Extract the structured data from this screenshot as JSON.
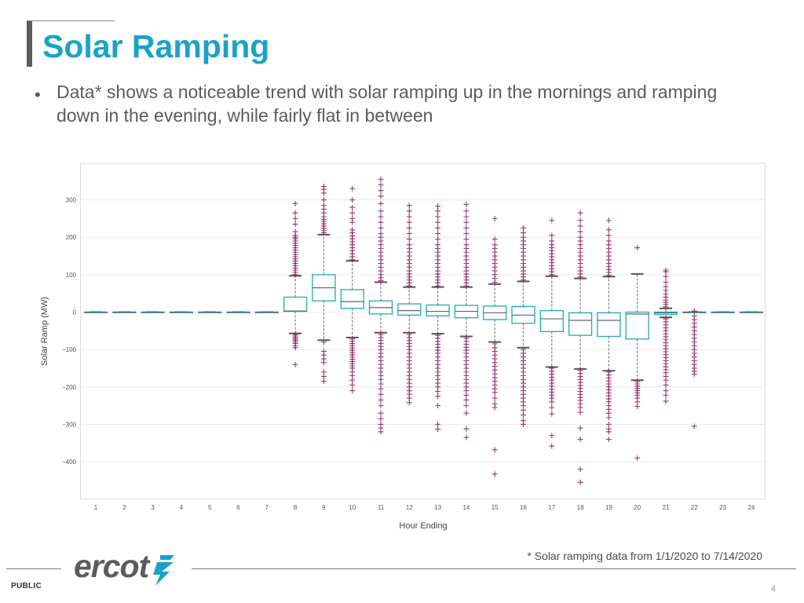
{
  "slide": {
    "title": "Solar Ramping",
    "bullet": "Data* shows a noticeable trend with solar ramping up in the mornings and ramping down in the evening, while fairly flat in between",
    "footnote": "* Solar ramping data from 1/1/2020 to 7/14/2020",
    "classification": "PUBLIC",
    "page_number": "4",
    "logo_text": "ercot",
    "title_color": "#1aa3c6",
    "logo_color": "#5b5b5b",
    "logo_icon_color": "#1aa3c6"
  },
  "chart_data": {
    "type": "box",
    "title": "",
    "xlabel": "Hour Ending",
    "ylabel": "Solar Ramp (MW)",
    "categories": [
      "1",
      "2",
      "3",
      "4",
      "5",
      "6",
      "7",
      "8",
      "9",
      "10",
      "11",
      "12",
      "13",
      "14",
      "15",
      "16",
      "17",
      "18",
      "19",
      "20",
      "21",
      "22",
      "23",
      "24"
    ],
    "yticks": [
      300,
      200,
      100,
      0,
      -100,
      -200,
      -300,
      -400
    ],
    "ylim": [
      -500,
      335
    ],
    "grid": true,
    "box_color": "#21a9b8",
    "median_color": "#666666",
    "whisker_color": "#7f7f7f",
    "outlier_color": "#8b1553",
    "boxes": [
      {
        "q1": 0,
        "median": 0,
        "q3": 0,
        "wlo": 0,
        "whi": 0,
        "outliers": []
      },
      {
        "q1": 0,
        "median": 0,
        "q3": 0,
        "wlo": 0,
        "whi": 0,
        "outliers": []
      },
      {
        "q1": 0,
        "median": 0,
        "q3": 0,
        "wlo": 0,
        "whi": 0,
        "outliers": []
      },
      {
        "q1": 0,
        "median": 0,
        "q3": 0,
        "wlo": 0,
        "whi": 0,
        "outliers": []
      },
      {
        "q1": 0,
        "median": 0,
        "q3": 0,
        "wlo": 0,
        "whi": 0,
        "outliers": []
      },
      {
        "q1": 0,
        "median": 0,
        "q3": 0,
        "wlo": 0,
        "whi": 0,
        "outliers": []
      },
      {
        "q1": 0,
        "median": 0,
        "q3": 0,
        "wlo": 0,
        "whi": 0,
        "outliers": []
      },
      {
        "q1": 2,
        "median": 3,
        "q3": 40,
        "wlo": -57,
        "whi": 97,
        "outliers": [
          -60,
          -64,
          -68,
          -72,
          -76,
          -80,
          -84,
          -90,
          -95,
          -140,
          100,
          106,
          112,
          118,
          124,
          130,
          136,
          142,
          148,
          154,
          160,
          166,
          172,
          178,
          184,
          190,
          196,
          200,
          205,
          215,
          235,
          250,
          265,
          290
        ]
      },
      {
        "q1": 30,
        "median": 65,
        "q3": 100,
        "wlo": -75,
        "whi": 207,
        "outliers": [
          -80,
          -105,
          -115,
          -125,
          -135,
          -160,
          -172,
          -185,
          212,
          218,
          224,
          230,
          236,
          242,
          248,
          255,
          265,
          275,
          285,
          300,
          318,
          328,
          336
        ]
      },
      {
        "q1": 10,
        "median": 28,
        "q3": 60,
        "wlo": -68,
        "whi": 137,
        "outliers": [
          -72,
          -78,
          -84,
          -90,
          -96,
          -102,
          -108,
          -114,
          -120,
          -126,
          -132,
          -138,
          -144,
          -150,
          -160,
          -170,
          -182,
          -195,
          -210,
          140,
          148,
          156,
          164,
          172,
          180,
          188,
          196,
          204,
          212,
          220,
          240,
          250,
          265,
          280,
          300,
          330
        ]
      },
      {
        "q1": -5,
        "median": 12,
        "q3": 30,
        "wlo": -55,
        "whi": 80,
        "outliers": [
          -60,
          -68,
          -76,
          -84,
          -92,
          -100,
          -110,
          -120,
          -130,
          -140,
          -150,
          -160,
          -170,
          -180,
          -192,
          -205,
          -220,
          -235,
          -250,
          -270,
          -285,
          -300,
          -310,
          -320,
          84,
          92,
          100,
          110,
          120,
          130,
          140,
          150,
          160,
          170,
          180,
          190,
          200,
          210,
          225,
          240,
          255,
          270,
          290,
          310,
          325,
          340,
          355
        ]
      },
      {
        "q1": -8,
        "median": 4,
        "q3": 22,
        "wlo": -55,
        "whi": 67,
        "outliers": [
          -60,
          -68,
          -76,
          -84,
          -92,
          -100,
          -110,
          -120,
          -130,
          -140,
          -150,
          -160,
          -170,
          -180,
          -190,
          -200,
          -210,
          -220,
          -230,
          -242,
          70,
          78,
          86,
          94,
          102,
          110,
          120,
          130,
          140,
          150,
          160,
          170,
          180,
          195,
          210,
          225,
          240,
          255,
          270,
          285
        ]
      },
      {
        "q1": -10,
        "median": 2,
        "q3": 19,
        "wlo": -58,
        "whi": 67,
        "outliers": [
          -62,
          -70,
          -78,
          -86,
          -94,
          -102,
          -110,
          -120,
          -130,
          -140,
          -150,
          -160,
          -170,
          -180,
          -190,
          -200,
          -212,
          -225,
          -250,
          -300,
          -313,
          70,
          78,
          86,
          94,
          102,
          110,
          120,
          130,
          140,
          150,
          160,
          170,
          180,
          195,
          210,
          225,
          240,
          255,
          270,
          283
        ]
      },
      {
        "q1": -15,
        "median": 2,
        "q3": 18,
        "wlo": -65,
        "whi": 67,
        "outliers": [
          -70,
          -78,
          -86,
          -94,
          -102,
          -110,
          -120,
          -130,
          -140,
          -150,
          -160,
          -170,
          -180,
          -190,
          -200,
          -210,
          -222,
          -235,
          -250,
          -270,
          -312,
          -335,
          70,
          78,
          86,
          94,
          102,
          110,
          120,
          130,
          140,
          150,
          160,
          170,
          180,
          195,
          210,
          225,
          240,
          255,
          270,
          288
        ]
      },
      {
        "q1": -20,
        "median": -2,
        "q3": 16,
        "wlo": -80,
        "whi": 75,
        "outliers": [
          -85,
          -95,
          -105,
          -115,
          -125,
          -135,
          -145,
          -155,
          -165,
          -175,
          -185,
          -195,
          -205,
          -215,
          -230,
          -245,
          -255,
          -368,
          -433,
          80,
          90,
          100,
          110,
          120,
          130,
          140,
          150,
          160,
          170,
          180,
          195,
          250
        ]
      },
      {
        "q1": -30,
        "median": -8,
        "q3": 15,
        "wlo": -95,
        "whi": 82,
        "outliers": [
          -100,
          -110,
          -120,
          -130,
          -140,
          -150,
          -160,
          -170,
          -180,
          -190,
          -200,
          -210,
          -220,
          -230,
          -240,
          -250,
          -262,
          -275,
          -290,
          -300,
          86,
          94,
          102,
          110,
          120,
          130,
          140,
          150,
          160,
          170,
          180,
          190,
          200,
          212,
          225
        ]
      },
      {
        "q1": -52,
        "median": -18,
        "q3": 4,
        "wlo": -147,
        "whi": 96,
        "outliers": [
          -150,
          -158,
          -166,
          -174,
          -182,
          -190,
          -198,
          -206,
          -214,
          -222,
          -230,
          -240,
          -255,
          -272,
          -330,
          -358,
          100,
          108,
          116,
          124,
          132,
          140,
          148,
          156,
          164,
          172,
          180,
          190,
          205,
          245
        ]
      },
      {
        "q1": -62,
        "median": -22,
        "q3": -2,
        "wlo": -152,
        "whi": 90,
        "outliers": [
          -156,
          -164,
          -172,
          -180,
          -188,
          -196,
          -204,
          -212,
          -220,
          -228,
          -236,
          -245,
          -255,
          -268,
          -310,
          -340,
          -420,
          -455,
          94,
          102,
          110,
          120,
          130,
          140,
          150,
          160,
          170,
          180,
          190,
          200,
          215,
          230,
          245,
          265
        ]
      },
      {
        "q1": -65,
        "median": -22,
        "q3": -2,
        "wlo": -157,
        "whi": 95,
        "outliers": [
          -160,
          -168,
          -176,
          -184,
          -192,
          -200,
          -208,
          -216,
          -224,
          -232,
          -240,
          -250,
          -260,
          -270,
          -282,
          -300,
          -312,
          -320,
          -340,
          98,
          106,
          114,
          122,
          130,
          140,
          150,
          160,
          170,
          180,
          190,
          205,
          220,
          245
        ]
      },
      {
        "q1": -72,
        "median": -5,
        "q3": 0,
        "wlo": -182,
        "whi": 102,
        "outliers": [
          -186,
          -192,
          -198,
          -204,
          -210,
          -216,
          -222,
          -230,
          -240,
          -252,
          -390,
          172
        ]
      },
      {
        "q1": -6,
        "median": -2,
        "q3": 0,
        "wlo": -14,
        "whi": 10,
        "outliers": [
          -18,
          -26,
          -34,
          -42,
          -50,
          -58,
          -66,
          -74,
          -82,
          -90,
          -98,
          -106,
          -114,
          -122,
          -130,
          -138,
          -146,
          -154,
          -162,
          -172,
          -182,
          -195,
          -210,
          -222,
          -238,
          14,
          20,
          26,
          32,
          40,
          48,
          58,
          68,
          80,
          95,
          108,
          112
        ]
      },
      {
        "q1": 0,
        "median": 0,
        "q3": 0,
        "wlo": 0,
        "whi": 0,
        "outliers": [
          -10,
          -20,
          -30,
          -40,
          -50,
          -60,
          -70,
          -80,
          -90,
          -100,
          -110,
          -120,
          -130,
          -140,
          -150,
          -158,
          -166,
          -305,
          3
        ]
      },
      {
        "q1": 0,
        "median": 0,
        "q3": 0,
        "wlo": 0,
        "whi": 0,
        "outliers": []
      },
      {
        "q1": 0,
        "median": 0,
        "q3": 0,
        "wlo": 0,
        "whi": 0,
        "outliers": []
      }
    ]
  }
}
